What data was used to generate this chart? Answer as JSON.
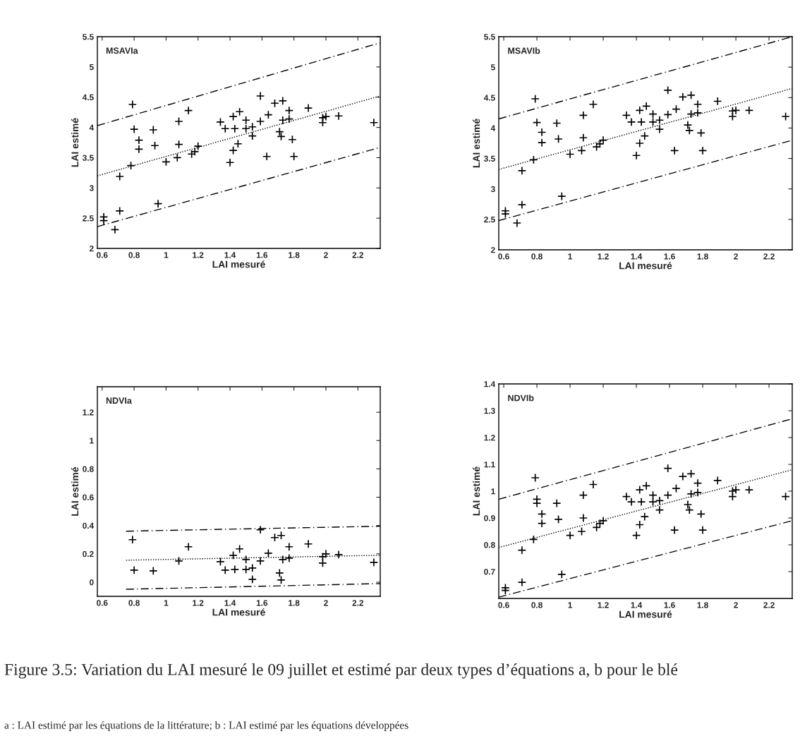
{
  "chart_data": [
    {
      "type": "scatter",
      "xlabel": "LAI mesuré",
      "ylabel": "LAI estimé",
      "annotations": [
        "MSAVIa"
      ],
      "xlim": [
        0.57,
        2.34
      ],
      "ylim": [
        2,
        5.5
      ],
      "xticks": [
        0.6,
        0.8,
        1,
        1.2,
        1.4,
        1.6,
        1.8,
        2,
        2.2
      ],
      "yticks": [
        2,
        2.5,
        3,
        3.5,
        4,
        4.5,
        5,
        5.5
      ],
      "grid": false,
      "legend": false,
      "series": [
        {
          "type": "scatter",
          "marker": "cross",
          "color": "#000000",
          "x": [
            0.61,
            0.61,
            0.68,
            0.71,
            0.71,
            0.78,
            0.79,
            0.8,
            0.83,
            0.83,
            0.92,
            0.93,
            0.95,
            1.0,
            1.07,
            1.08,
            1.08,
            1.14,
            1.16,
            1.18,
            1.2,
            1.34,
            1.37,
            1.4,
            1.42,
            1.42,
            1.43,
            1.45,
            1.46,
            1.5,
            1.5,
            1.54,
            1.54,
            1.59,
            1.59,
            1.63,
            1.64,
            1.68,
            1.71,
            1.72,
            1.73,
            1.73,
            1.77,
            1.77,
            1.79,
            1.8,
            1.89,
            1.98,
            1.98,
            2.0,
            2.08,
            2.3
          ],
          "values": [
            2.52,
            2.46,
            2.31,
            2.62,
            3.19,
            3.37,
            4.38,
            3.97,
            3.79,
            3.64,
            3.96,
            3.7,
            2.74,
            3.43,
            3.5,
            4.1,
            3.72,
            4.28,
            3.56,
            3.6,
            3.69,
            4.09,
            3.98,
            3.42,
            4.18,
            3.62,
            3.98,
            3.73,
            4.26,
            4.12,
            3.98,
            4.01,
            3.86,
            4.52,
            4.1,
            3.52,
            4.21,
            4.4,
            3.93,
            3.85,
            4.44,
            4.12,
            4.28,
            4.14,
            3.8,
            3.52,
            4.32,
            4.16,
            4.08,
            4.18,
            4.19,
            4.08
          ]
        },
        {
          "type": "line",
          "line_style": "dashed",
          "color": "#000000",
          "x": [
            0.57,
            2.34
          ],
          "values": [
            4.03,
            5.4
          ]
        },
        {
          "type": "line",
          "line_style": "dotted",
          "color": "#000000",
          "x": [
            0.57,
            2.34
          ],
          "values": [
            3.2,
            4.52
          ]
        },
        {
          "type": "line",
          "line_style": "dashed",
          "color": "#000000",
          "x": [
            0.57,
            2.34
          ],
          "values": [
            2.36,
            3.67
          ]
        }
      ]
    },
    {
      "type": "scatter",
      "xlabel": "LAI mesuré",
      "ylabel": "LAI estimé",
      "annotations": [
        "MSAVIb"
      ],
      "xlim": [
        0.57,
        2.34
      ],
      "ylim": [
        2,
        5.5
      ],
      "xticks": [
        0.6,
        0.8,
        1,
        1.2,
        1.4,
        1.6,
        1.8,
        2,
        2.2
      ],
      "yticks": [
        2,
        2.5,
        3,
        3.5,
        4,
        4.5,
        5,
        5.5
      ],
      "grid": false,
      "legend": false,
      "series": [
        {
          "type": "scatter",
          "marker": "cross",
          "color": "#000000",
          "x": [
            0.61,
            0.61,
            0.68,
            0.71,
            0.71,
            0.78,
            0.79,
            0.8,
            0.83,
            0.83,
            0.92,
            0.93,
            0.95,
            1.0,
            1.07,
            1.08,
            1.08,
            1.14,
            1.16,
            1.18,
            1.2,
            1.34,
            1.37,
            1.4,
            1.42,
            1.42,
            1.43,
            1.45,
            1.46,
            1.5,
            1.5,
            1.54,
            1.54,
            1.59,
            1.59,
            1.63,
            1.64,
            1.68,
            1.71,
            1.72,
            1.73,
            1.73,
            1.77,
            1.77,
            1.79,
            1.8,
            1.89,
            1.98,
            1.98,
            2.0,
            2.08,
            2.3
          ],
          "values": [
            2.64,
            2.59,
            2.44,
            2.74,
            3.3,
            3.48,
            4.48,
            4.09,
            3.93,
            3.76,
            4.08,
            3.82,
            2.88,
            3.57,
            3.63,
            4.21,
            3.84,
            4.39,
            3.69,
            3.74,
            3.8,
            4.21,
            4.1,
            3.55,
            4.29,
            3.75,
            4.1,
            3.87,
            4.36,
            4.23,
            4.1,
            4.13,
            3.98,
            4.62,
            4.22,
            3.63,
            4.31,
            4.51,
            4.05,
            3.96,
            4.54,
            4.23,
            4.39,
            4.25,
            3.92,
            3.63,
            4.44,
            4.28,
            4.19,
            4.29,
            4.29,
            4.19
          ]
        },
        {
          "type": "line",
          "line_style": "dashed",
          "color": "#000000",
          "x": [
            0.57,
            2.34
          ],
          "values": [
            4.15,
            5.5
          ]
        },
        {
          "type": "line",
          "line_style": "dotted",
          "color": "#000000",
          "x": [
            0.57,
            2.34
          ],
          "values": [
            3.32,
            4.65
          ]
        },
        {
          "type": "line",
          "line_style": "dashed",
          "color": "#000000",
          "x": [
            0.57,
            2.34
          ],
          "values": [
            2.48,
            3.8
          ]
        }
      ]
    },
    {
      "type": "scatter",
      "xlabel": "LAI mesuré",
      "ylabel": "LAI estimé",
      "annotations": [
        "NDVIa"
      ],
      "xlim": [
        0.57,
        2.34
      ],
      "ylim": [
        -0.1,
        1.38
      ],
      "xticks": [
        0.6,
        0.8,
        1,
        1.2,
        1.4,
        1.6,
        1.8,
        2,
        2.2
      ],
      "yticks": [
        0,
        0.2,
        0.4,
        0.6,
        0.8,
        1,
        1.2
      ],
      "grid": false,
      "legend": false,
      "series": [
        {
          "type": "scatter",
          "marker": "cross",
          "color": "#000000",
          "x": [
            0.79,
            0.8,
            0.92,
            1.08,
            1.14,
            1.34,
            1.37,
            1.42,
            1.43,
            1.46,
            1.5,
            1.5,
            1.54,
            1.54,
            1.59,
            1.59,
            1.64,
            1.68,
            1.71,
            1.72,
            1.72,
            1.73,
            1.77,
            1.77,
            1.89,
            1.98,
            1.98,
            2.0,
            2.08,
            2.3
          ],
          "values": [
            0.3,
            0.085,
            0.08,
            0.15,
            0.25,
            0.145,
            0.085,
            0.19,
            0.09,
            0.235,
            0.16,
            0.09,
            0.1,
            0.02,
            0.37,
            0.15,
            0.205,
            0.315,
            0.065,
            0.015,
            0.33,
            0.16,
            0.25,
            0.17,
            0.27,
            0.135,
            0.18,
            0.2,
            0.195,
            0.14
          ]
        },
        {
          "type": "line",
          "line_style": "dashed",
          "color": "#000000",
          "x": [
            0.75,
            2.34
          ],
          "values": [
            0.36,
            0.395
          ]
        },
        {
          "type": "line",
          "line_style": "dotted",
          "color": "#000000",
          "x": [
            0.75,
            2.34
          ],
          "values": [
            0.155,
            0.19
          ]
        },
        {
          "type": "line",
          "line_style": "dashed",
          "color": "#000000",
          "x": [
            0.75,
            2.34
          ],
          "values": [
            -0.05,
            -0.01
          ]
        }
      ]
    },
    {
      "type": "scatter",
      "xlabel": "LAI mesuré",
      "ylabel": "LAI estimé",
      "annotations": [
        "NDVIb",
        "Figure 3.5: Variation du LAI mesuré le 09 juillet et estimé par deux types d’équations a, b pour le blé",
        "a : LAI estimé par les équations de la littérature; b : LAI estimé par les équations développées"
      ],
      "xlim": [
        0.57,
        2.34
      ],
      "ylim": [
        0.6,
        1.4
      ],
      "xticks": [
        0.6,
        0.8,
        1,
        1.2,
        1.4,
        1.6,
        1.8,
        2,
        2.2
      ],
      "yticks": [
        0.7,
        0.8,
        0.9,
        1,
        1.1,
        1.2,
        1.3,
        1.4
      ],
      "grid": false,
      "legend": false,
      "series": [
        {
          "type": "scatter",
          "marker": "cross",
          "color": "#000000",
          "x": [
            0.61,
            0.61,
            0.71,
            0.71,
            0.78,
            0.79,
            0.8,
            0.8,
            0.83,
            0.83,
            0.92,
            0.93,
            0.95,
            1.0,
            1.07,
            1.08,
            1.08,
            1.14,
            1.16,
            1.18,
            1.2,
            1.34,
            1.37,
            1.4,
            1.42,
            1.42,
            1.43,
            1.45,
            1.46,
            1.5,
            1.5,
            1.54,
            1.54,
            1.59,
            1.59,
            1.63,
            1.64,
            1.68,
            1.71,
            1.72,
            1.73,
            1.73,
            1.77,
            1.77,
            1.79,
            1.8,
            1.89,
            1.98,
            1.98,
            2.0,
            2.08,
            2.3
          ],
          "values": [
            0.64,
            0.63,
            0.78,
            0.66,
            0.82,
            1.05,
            0.97,
            0.955,
            0.915,
            0.88,
            0.955,
            0.895,
            0.69,
            0.835,
            0.85,
            0.985,
            0.9,
            1.025,
            0.865,
            0.88,
            0.89,
            0.98,
            0.96,
            0.835,
            1.005,
            0.875,
            0.96,
            0.905,
            1.02,
            0.985,
            0.96,
            0.965,
            0.93,
            1.085,
            0.985,
            0.855,
            1.01,
            1.055,
            0.95,
            0.93,
            1.065,
            0.99,
            1.03,
            0.995,
            0.915,
            0.855,
            1.04,
            1.0,
            0.98,
            1.005,
            1.005,
            0.98
          ]
        },
        {
          "type": "line",
          "line_style": "dashed",
          "color": "#000000",
          "x": [
            0.57,
            2.34
          ],
          "values": [
            0.97,
            1.27
          ]
        },
        {
          "type": "line",
          "line_style": "dotted",
          "color": "#000000",
          "x": [
            0.57,
            2.34
          ],
          "values": [
            0.79,
            1.08
          ]
        },
        {
          "type": "line",
          "line_style": "dashed",
          "color": "#000000",
          "x": [
            0.57,
            2.34
          ],
          "values": [
            0.605,
            0.89
          ]
        }
      ]
    }
  ]
}
